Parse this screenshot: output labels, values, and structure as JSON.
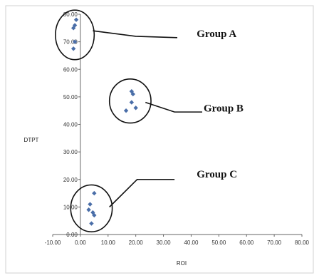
{
  "chart_data": {
    "type": "scatter",
    "xlabel": "ROI",
    "ylabel": "DTPT",
    "xlim": [
      -10,
      80
    ],
    "ylim": [
      0,
      80
    ],
    "x_ticks": [
      "-10.00",
      "0.00",
      "10.00",
      "20.00",
      "30.00",
      "40.00",
      "50.00",
      "60.00",
      "70.00",
      "80.00"
    ],
    "y_ticks": [
      "0.00",
      "10.00",
      "20.00",
      "30.00",
      "40.00",
      "50.00",
      "60.00",
      "70.00",
      "80.00"
    ],
    "grid": false,
    "marker_color": "#4a6ea8",
    "series": [
      {
        "points": [
          {
            "x": -1.5,
            "y": 78
          },
          {
            "x": -2.0,
            "y": 76
          },
          {
            "x": -2.5,
            "y": 75
          },
          {
            "x": -2.0,
            "y": 70
          },
          {
            "x": -2.5,
            "y": 67.5
          },
          {
            "x": 18.5,
            "y": 52
          },
          {
            "x": 19.0,
            "y": 51
          },
          {
            "x": 18.5,
            "y": 48
          },
          {
            "x": 20.0,
            "y": 46
          },
          {
            "x": 16.5,
            "y": 45
          },
          {
            "x": 5.0,
            "y": 15
          },
          {
            "x": 3.5,
            "y": 11
          },
          {
            "x": 3.0,
            "y": 9
          },
          {
            "x": 4.5,
            "y": 8
          },
          {
            "x": 5.0,
            "y": 7
          },
          {
            "x": 4.0,
            "y": 4
          }
        ]
      }
    ],
    "annotations": [
      {
        "label": "Group A",
        "center": [
          -2.0,
          72.5
        ],
        "radius": [
          7.0,
          9.0
        ],
        "line": [
          [
            4.5,
            74.0
          ],
          [
            20.0,
            72.0
          ],
          [
            35.0,
            71.5
          ]
        ],
        "text_at": [
          42.0,
          73.0
        ]
      },
      {
        "label": "Group B",
        "center": [
          18.0,
          48.5
        ],
        "radius": [
          7.5,
          8.0
        ],
        "line": [
          [
            23.5,
            48.0
          ],
          [
            34.0,
            44.5
          ],
          [
            44.0,
            44.5
          ]
        ],
        "text_at": [
          44.5,
          46.0
        ]
      },
      {
        "label": "Group C",
        "center": [
          4.0,
          9.5
        ],
        "radius": [
          7.5,
          8.5
        ],
        "line": [
          [
            10.5,
            10.0
          ],
          [
            20.5,
            20.0
          ],
          [
            34.0,
            20.0
          ]
        ],
        "text_at": [
          42.0,
          22.0
        ]
      }
    ]
  }
}
